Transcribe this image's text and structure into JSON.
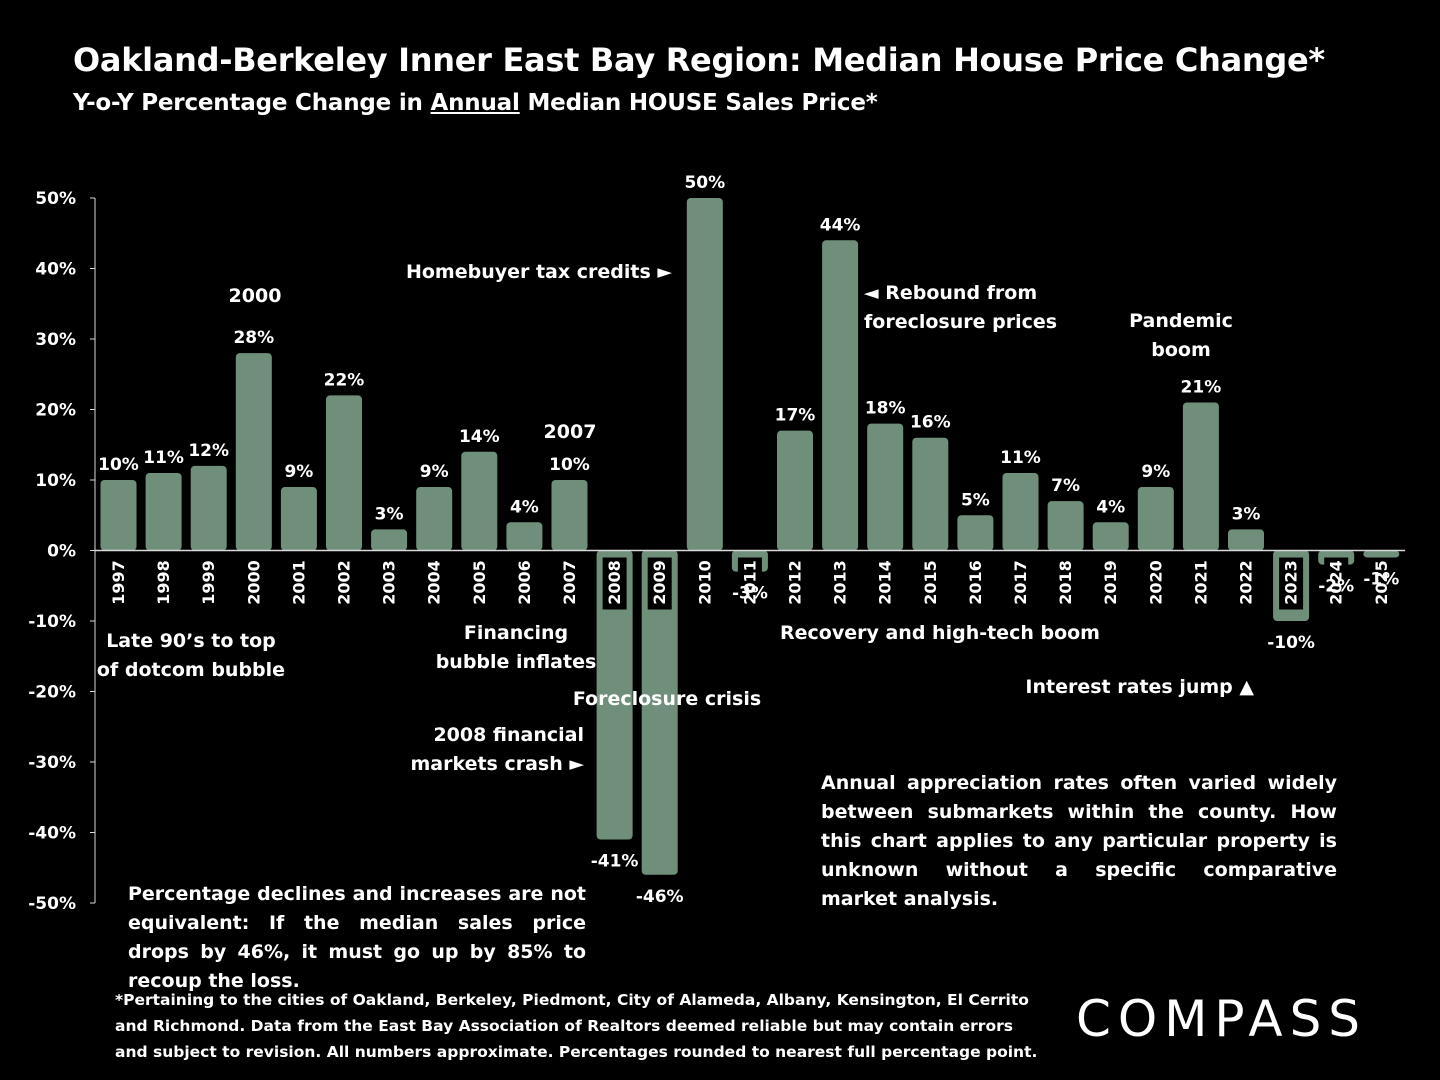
{
  "page": {
    "title": "Oakland-Berkeley Inner East Bay Region: Median House Price Change*",
    "subtitle_pre": "Y-o-Y Percentage Change in ",
    "subtitle_em": "Annual",
    "subtitle_post": " Median HOUSE Sales Price*"
  },
  "chart_data": {
    "type": "bar",
    "title": "Oakland-Berkeley Inner East Bay Region: Median House Price Change*",
    "xlabel": "",
    "ylabel": "",
    "ylim": [
      -50,
      50
    ],
    "yticks": [
      "50%",
      "40%",
      "30%",
      "20%",
      "10%",
      "0%",
      "-10%",
      "-20%",
      "-30%",
      "-40%",
      "-50%"
    ],
    "ytick_values": [
      50,
      40,
      30,
      20,
      10,
      0,
      -10,
      -20,
      -30,
      -40,
      -50
    ],
    "categories": [
      "1997",
      "1998",
      "1999",
      "2000",
      "2001",
      "2002",
      "2003",
      "2004",
      "2005",
      "2006",
      "2007",
      "2008",
      "2009",
      "2010",
      "2011",
      "2012",
      "2013",
      "2014",
      "2015",
      "2016",
      "2017",
      "2018",
      "2019",
      "2020",
      "2021",
      "2022",
      "2023",
      "2024",
      "2025"
    ],
    "values": [
      10,
      11,
      12,
      28,
      9,
      22,
      3,
      9,
      14,
      4,
      10,
      -41,
      -46,
      50,
      -3,
      17,
      44,
      18,
      16,
      5,
      11,
      7,
      4,
      9,
      21,
      3,
      -10,
      -2,
      -1
    ],
    "value_labels": [
      "10%",
      "11%",
      "12%",
      "28%",
      "9%",
      "22%",
      "3%",
      "9%",
      "14%",
      "4%",
      "10%",
      "-41%",
      "-46%",
      "50%",
      "-3%",
      "17%",
      "44%",
      "18%",
      "16%",
      "5%",
      "11%",
      "7%",
      "4%",
      "9%",
      "21%",
      "3%",
      "-10%",
      "-2%",
      "-1%"
    ],
    "bar_color": "#6f8f7a",
    "annotations": [
      {
        "name": "annotation-2000",
        "lines": [
          "2000"
        ]
      },
      {
        "name": "annotation-2007",
        "lines": [
          "2007"
        ]
      },
      {
        "name": "annotation-tax-credits",
        "lines": [
          "Homebuyer tax credits ►"
        ]
      },
      {
        "name": "annotation-rebound",
        "lines": [
          "◄ Rebound from",
          "foreclosure prices"
        ]
      },
      {
        "name": "annotation-pandemic",
        "lines": [
          "Pandemic",
          "boom"
        ]
      },
      {
        "name": "annotation-late-90s",
        "lines": [
          "Late 90’s to top",
          "of dotcom bubble"
        ]
      },
      {
        "name": "annotation-financing",
        "lines": [
          "Financing",
          "bubble inflates"
        ]
      },
      {
        "name": "annotation-recovery",
        "lines": [
          "Recovery and high-tech boom"
        ]
      },
      {
        "name": "annotation-foreclosure",
        "lines": [
          "Foreclosure crisis"
        ]
      },
      {
        "name": "annotation-interest-rates",
        "lines": [
          "Interest rates jump ▲"
        ]
      },
      {
        "name": "annotation-2008-crash",
        "lines": [
          "2008 financial",
          "markets crash ►"
        ]
      }
    ]
  },
  "notes": {
    "left": "Percentage declines and increases are not equivalent: If the median sales price drops by 46%, it must go up by 85% to recoup the loss.",
    "right": "Annual appreciation rates often varied widely between submarkets within the county. How this chart applies to any particular property is unknown without a specific comparative market analysis."
  },
  "footnote": "*Pertaining to the cities of Oakland, Berkeley, Piedmont, City of Alameda, Albany, Kensington, El Cerrito and Richmond. Data from the East Bay Association of Realtors deemed reliable but may contain errors and subject to revision. All numbers approximate. Percentages rounded to nearest full percentage point.",
  "logo": "COMPASS"
}
